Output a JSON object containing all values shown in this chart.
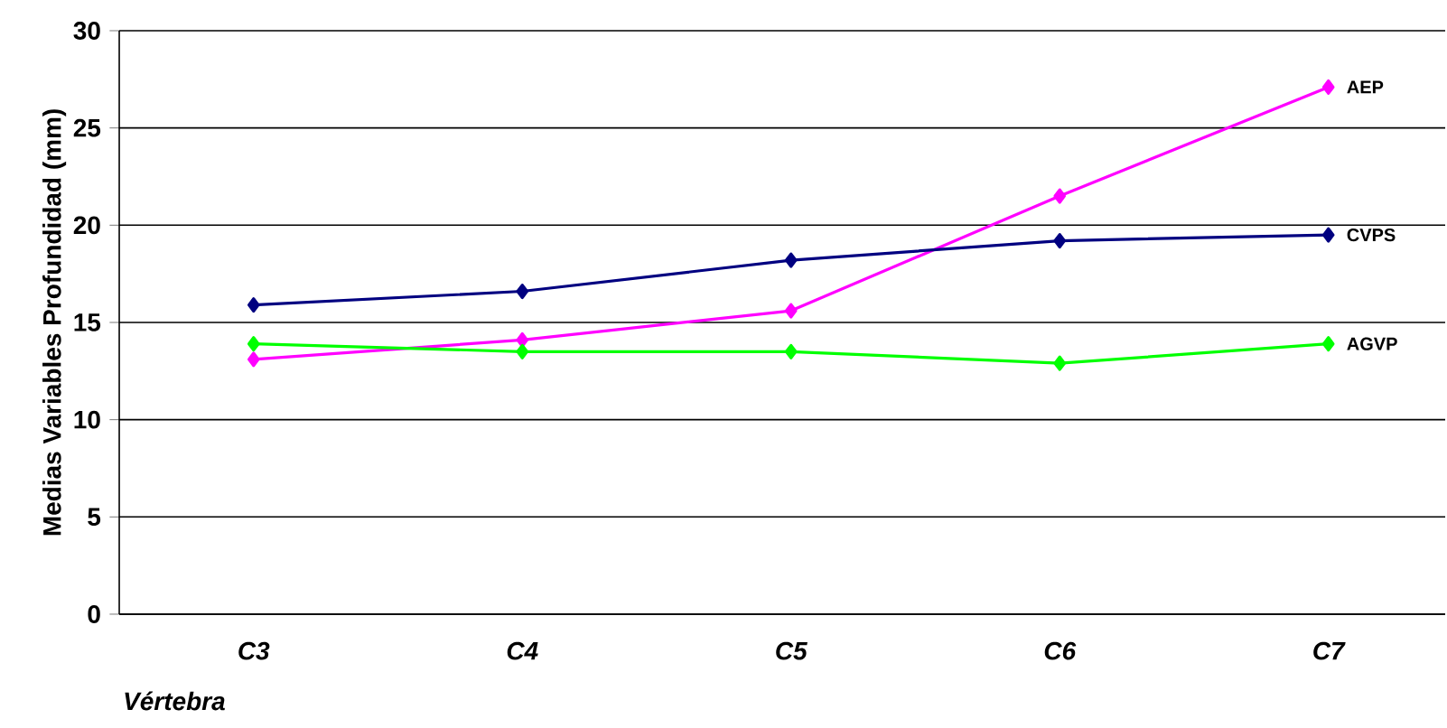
{
  "chart_data": {
    "type": "line",
    "xlabel": "Vértebra",
    "ylabel": "Medias Variables Profundidad (mm)",
    "categories": [
      "C3",
      "C4",
      "C5",
      "C6",
      "C7"
    ],
    "series": [
      {
        "name": "AEP",
        "color": "#ff00ff",
        "values": [
          13.1,
          14.1,
          15.6,
          21.5,
          27.1
        ]
      },
      {
        "name": "CVPS",
        "color": "#000080",
        "values": [
          15.9,
          16.6,
          18.2,
          19.2,
          19.5
        ]
      },
      {
        "name": "AGVP",
        "color": "#00ff00",
        "values": [
          13.9,
          13.5,
          13.5,
          12.9,
          13.9
        ]
      }
    ],
    "ylim": [
      0,
      30
    ],
    "yticks": [
      0,
      5,
      10,
      15,
      20,
      25,
      30
    ],
    "grid": "y",
    "marker": "diamond",
    "line_style": "solid"
  }
}
